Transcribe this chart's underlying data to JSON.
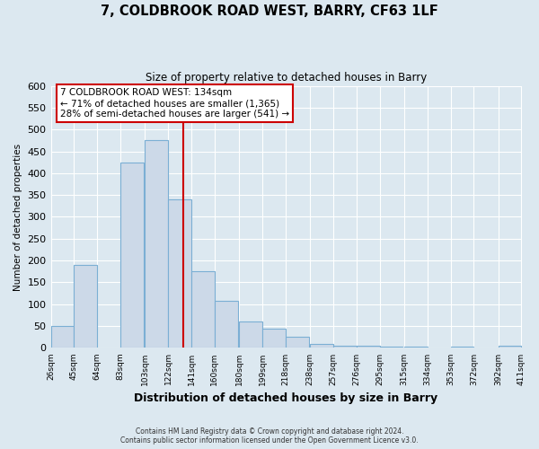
{
  "title": "7, COLDBROOK ROAD WEST, BARRY, CF63 1LF",
  "subtitle": "Size of property relative to detached houses in Barry",
  "xlabel": "Distribution of detached houses by size in Barry",
  "ylabel": "Number of detached properties",
  "bar_left_edges": [
    26,
    45,
    64,
    83,
    103,
    122,
    141,
    160,
    180,
    199,
    218,
    238,
    257,
    276,
    295,
    315,
    334,
    353,
    372,
    392
  ],
  "bar_heights": [
    50,
    190,
    0,
    425,
    475,
    340,
    175,
    107,
    60,
    45,
    25,
    10,
    5,
    5,
    2,
    2,
    0,
    2,
    0,
    5
  ],
  "bin_width": 19,
  "tick_labels": [
    "26sqm",
    "45sqm",
    "64sqm",
    "83sqm",
    "103sqm",
    "122sqm",
    "141sqm",
    "160sqm",
    "180sqm",
    "199sqm",
    "218sqm",
    "238sqm",
    "257sqm",
    "276sqm",
    "295sqm",
    "315sqm",
    "334sqm",
    "353sqm",
    "372sqm",
    "392sqm",
    "411sqm"
  ],
  "tick_positions": [
    26,
    45,
    64,
    83,
    103,
    122,
    141,
    160,
    180,
    199,
    218,
    238,
    257,
    276,
    295,
    315,
    334,
    353,
    372,
    392,
    411
  ],
  "property_line_x": 134,
  "ylim": [
    0,
    600
  ],
  "yticks": [
    0,
    50,
    100,
    150,
    200,
    250,
    300,
    350,
    400,
    450,
    500,
    550,
    600
  ],
  "bar_facecolor": "#ccd9e8",
  "bar_edgecolor": "#7bafd4",
  "property_line_color": "#cc0000",
  "annotation_box_edgecolor": "#cc0000",
  "annotation_text_line1": "7 COLDBROOK ROAD WEST: 134sqm",
  "annotation_text_line2": "← 71% of detached houses are smaller (1,365)",
  "annotation_text_line3": "28% of semi-detached houses are larger (541) →",
  "footer_line1": "Contains HM Land Registry data © Crown copyright and database right 2024.",
  "footer_line2": "Contains public sector information licensed under the Open Government Licence v3.0.",
  "background_color": "#dce8f0",
  "plot_bg_color": "#dce8f0",
  "grid_color": "#ffffff"
}
